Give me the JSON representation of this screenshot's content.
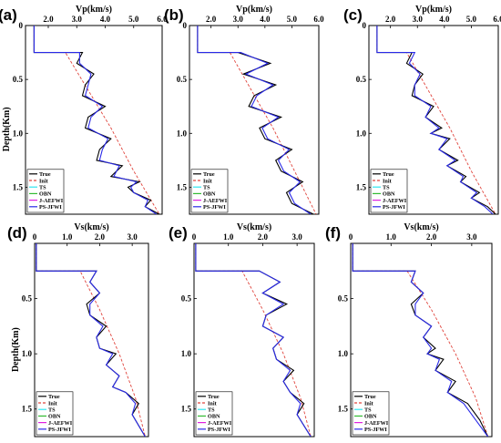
{
  "figure": {
    "background": "#ffffff"
  },
  "legend_entries": [
    {
      "name": "True",
      "color": "#000000",
      "dash": ""
    },
    {
      "name": "Init",
      "color": "#e0443c",
      "dash": "3,2"
    },
    {
      "name": "TS",
      "color": "#2ee6f0",
      "dash": ""
    },
    {
      "name": "OBN",
      "color": "#33bb33",
      "dash": ""
    },
    {
      "name": "J-AEFWI",
      "color": "#e020e0",
      "dash": ""
    },
    {
      "name": "PS-JFWI",
      "color": "#2a2ae8",
      "dash": ""
    }
  ],
  "chart_data": [
    {
      "panel_label": "(a)",
      "type": "line",
      "xlabel": "Vp(km/s)",
      "ylabel": "Depth(Km)",
      "xlim": [
        1.2,
        6.0
      ],
      "ylim": [
        0,
        1.75
      ],
      "xticks": [
        "2.0",
        "3.0",
        "4.0",
        "5.0",
        "6.0"
      ],
      "xtick_values": [
        2,
        3,
        4,
        5,
        6
      ],
      "yticks": [
        "0",
        "0.5",
        "1.0",
        "1.5"
      ],
      "ytick_values": [
        0,
        0.5,
        1.0,
        1.5
      ],
      "legend_position": "bottom-left",
      "series": [
        {
          "name": "True",
          "x": [
            1.5,
            1.5,
            3.2,
            3.0,
            3.6,
            3.3,
            3.2,
            4.0,
            3.4,
            3.3,
            4.2,
            3.8,
            3.7,
            4.6,
            4.4,
            4.2,
            5.2,
            4.8,
            5.0,
            5.6,
            5.4,
            5.9
          ],
          "y": [
            0,
            0.25,
            0.25,
            0.35,
            0.45,
            0.55,
            0.65,
            0.75,
            0.85,
            0.95,
            1.05,
            1.15,
            1.25,
            1.3,
            1.35,
            1.4,
            1.45,
            1.5,
            1.55,
            1.62,
            1.68,
            1.75
          ]
        },
        {
          "name": "Init",
          "x": [
            1.5,
            1.5,
            2.6,
            3.4,
            4.2,
            5.0,
            5.9
          ],
          "y": [
            0,
            0.25,
            0.25,
            0.6,
            0.95,
            1.35,
            1.75
          ]
        },
        {
          "name": "PS-JFWI",
          "x": [
            1.5,
            1.5,
            3.1,
            3.1,
            3.5,
            3.4,
            3.3,
            3.9,
            3.5,
            3.4,
            4.1,
            3.9,
            3.8,
            4.5,
            4.4,
            4.3,
            5.1,
            4.9,
            5.0,
            5.5,
            5.4,
            5.8
          ],
          "y": [
            0,
            0.25,
            0.25,
            0.35,
            0.45,
            0.55,
            0.65,
            0.75,
            0.85,
            0.95,
            1.05,
            1.15,
            1.25,
            1.3,
            1.35,
            1.4,
            1.45,
            1.5,
            1.55,
            1.62,
            1.68,
            1.75
          ]
        }
      ]
    },
    {
      "panel_label": "(b)",
      "type": "line",
      "xlabel": "Vp(km/s)",
      "ylabel": "",
      "xlim": [
        1.2,
        6.0
      ],
      "ylim": [
        0,
        1.75
      ],
      "xticks": [
        "2.0",
        "3.0",
        "4.0",
        "5.0",
        "6.0"
      ],
      "xtick_values": [
        2,
        3,
        4,
        5,
        6
      ],
      "yticks": [
        "0",
        "0.5",
        "1.0",
        "1.5"
      ],
      "ytick_values": [
        0,
        0.5,
        1.0,
        1.5
      ],
      "legend_position": "bottom-left",
      "series": [
        {
          "name": "True",
          "x": [
            1.5,
            1.5,
            3.0,
            4.2,
            3.2,
            4.4,
            3.6,
            3.4,
            4.6,
            3.8,
            4.0,
            5.0,
            4.4,
            4.6,
            5.4,
            4.8,
            5.0,
            5.8
          ],
          "y": [
            0,
            0.25,
            0.25,
            0.35,
            0.45,
            0.55,
            0.65,
            0.75,
            0.85,
            0.95,
            1.05,
            1.15,
            1.25,
            1.35,
            1.45,
            1.55,
            1.65,
            1.75
          ]
        },
        {
          "name": "Init",
          "x": [
            1.5,
            1.5,
            2.7,
            3.5,
            4.3,
            5.1,
            5.9
          ],
          "y": [
            0,
            0.25,
            0.25,
            0.6,
            0.95,
            1.35,
            1.75
          ]
        },
        {
          "name": "PS-JFWI",
          "x": [
            1.5,
            1.5,
            3.1,
            4.1,
            3.3,
            4.3,
            3.7,
            3.5,
            4.5,
            3.9,
            4.1,
            4.9,
            4.5,
            4.7,
            5.3,
            4.9,
            5.1,
            5.7
          ],
          "y": [
            0,
            0.25,
            0.25,
            0.35,
            0.45,
            0.55,
            0.65,
            0.75,
            0.85,
            0.95,
            1.05,
            1.15,
            1.25,
            1.35,
            1.45,
            1.55,
            1.65,
            1.75
          ]
        }
      ]
    },
    {
      "panel_label": "(c)",
      "type": "line",
      "xlabel": "Vp(km/s)",
      "ylabel": "",
      "xlim": [
        1.2,
        6.0
      ],
      "ylim": [
        0,
        1.75
      ],
      "xticks": [
        "2.0",
        "3.0",
        "4.0",
        "5.0",
        "6.0"
      ],
      "xtick_values": [
        2,
        3,
        4,
        5,
        6
      ],
      "yticks": [
        "0",
        "0.5",
        "1.0",
        "1.5"
      ],
      "ytick_values": [
        0,
        0.5,
        1.0,
        1.5
      ],
      "legend_position": "bottom-left",
      "series": [
        {
          "name": "True",
          "x": [
            1.5,
            1.5,
            2.8,
            2.6,
            3.2,
            2.9,
            2.8,
            3.6,
            3.3,
            3.9,
            3.5,
            4.2,
            3.8,
            4.5,
            4.1,
            4.8,
            4.6,
            5.3,
            5.0,
            5.6,
            5.9
          ],
          "y": [
            0,
            0.25,
            0.25,
            0.35,
            0.45,
            0.55,
            0.65,
            0.75,
            0.85,
            0.95,
            1.0,
            1.05,
            1.15,
            1.25,
            1.3,
            1.4,
            1.45,
            1.55,
            1.6,
            1.68,
            1.75
          ]
        },
        {
          "name": "Init",
          "x": [
            1.5,
            1.5,
            2.6,
            3.4,
            4.2,
            5.0,
            5.9
          ],
          "y": [
            0,
            0.25,
            0.25,
            0.6,
            0.95,
            1.35,
            1.75
          ]
        },
        {
          "name": "PS-JFWI",
          "x": [
            1.5,
            1.5,
            2.9,
            2.7,
            3.1,
            2.9,
            2.9,
            3.5,
            3.3,
            3.8,
            3.5,
            4.1,
            3.8,
            4.4,
            4.1,
            4.7,
            4.6,
            5.2,
            5.0,
            5.5,
            5.8
          ],
          "y": [
            0,
            0.25,
            0.25,
            0.35,
            0.45,
            0.55,
            0.65,
            0.75,
            0.85,
            0.95,
            1.0,
            1.05,
            1.15,
            1.25,
            1.3,
            1.4,
            1.45,
            1.55,
            1.6,
            1.68,
            1.75
          ]
        }
      ]
    },
    {
      "panel_label": "(d)",
      "type": "line",
      "xlabel": "Vs(km/s)",
      "ylabel": "Depth(Km)",
      "xlim": [
        0,
        3.5
      ],
      "ylim": [
        0,
        1.75
      ],
      "xticks": [
        "0",
        "1.0",
        "2.0",
        "3.0"
      ],
      "xtick_values": [
        0,
        1,
        2,
        3
      ],
      "yticks": [
        "0.5",
        "1.0",
        "1.5"
      ],
      "ytick_values": [
        0.5,
        1.0,
        1.5
      ],
      "legend_position": "bottom-left",
      "series": [
        {
          "name": "True",
          "x": [
            0.05,
            0.05,
            1.9,
            1.7,
            2.0,
            1.6,
            1.7,
            2.2,
            1.9,
            2.0,
            2.5,
            2.2,
            2.6,
            2.4,
            2.8,
            3.2,
            3.0,
            3.4
          ],
          "y": [
            0,
            0.25,
            0.25,
            0.35,
            0.45,
            0.55,
            0.65,
            0.75,
            0.85,
            0.95,
            1.0,
            1.1,
            1.2,
            1.3,
            1.35,
            1.45,
            1.55,
            1.75
          ]
        },
        {
          "name": "Init",
          "x": [
            0.05,
            0.05,
            1.4,
            2.0,
            2.6,
            3.1,
            3.4
          ],
          "y": [
            0,
            0.25,
            0.25,
            0.6,
            1.0,
            1.4,
            1.75
          ]
        },
        {
          "name": "PS-JFWI",
          "x": [
            0.05,
            0.05,
            1.9,
            1.7,
            2.0,
            1.7,
            1.7,
            2.1,
            1.9,
            2.0,
            2.4,
            2.2,
            2.6,
            2.4,
            2.8,
            3.1,
            3.0,
            3.4
          ],
          "y": [
            0,
            0.25,
            0.25,
            0.35,
            0.45,
            0.55,
            0.65,
            0.75,
            0.85,
            0.95,
            1.0,
            1.1,
            1.2,
            1.3,
            1.35,
            1.45,
            1.55,
            1.75
          ]
        }
      ]
    },
    {
      "panel_label": "(e)",
      "type": "line",
      "xlabel": "Vs(km/s)",
      "ylabel": "",
      "xlim": [
        0,
        3.5
      ],
      "ylim": [
        0,
        1.75
      ],
      "xticks": [
        "0",
        "1.0",
        "2.0",
        "3.0"
      ],
      "xtick_values": [
        0,
        1,
        2,
        3
      ],
      "yticks": [
        "0.5",
        "1.0",
        "1.5"
      ],
      "ytick_values": [
        0.5,
        1.0,
        1.5
      ],
      "legend_position": "bottom-left",
      "series": [
        {
          "name": "True",
          "x": [
            0.05,
            0.05,
            1.9,
            2.5,
            2.0,
            2.7,
            2.1,
            2.0,
            2.6,
            2.3,
            2.4,
            2.9,
            2.6,
            2.8,
            3.2,
            3.0,
            3.4
          ],
          "y": [
            0,
            0.25,
            0.25,
            0.35,
            0.45,
            0.55,
            0.65,
            0.75,
            0.85,
            0.95,
            1.05,
            1.15,
            1.25,
            1.35,
            1.45,
            1.55,
            1.75
          ]
        },
        {
          "name": "Init",
          "x": [
            0.05,
            0.05,
            1.4,
            2.0,
            2.6,
            3.1,
            3.4
          ],
          "y": [
            0,
            0.25,
            0.25,
            0.6,
            1.0,
            1.4,
            1.75
          ]
        },
        {
          "name": "PS-JFWI",
          "x": [
            0.05,
            0.05,
            1.9,
            2.5,
            2.0,
            2.6,
            2.1,
            2.0,
            2.6,
            2.3,
            2.4,
            2.8,
            2.6,
            2.8,
            3.1,
            3.0,
            3.4
          ],
          "y": [
            0,
            0.25,
            0.25,
            0.35,
            0.45,
            0.55,
            0.65,
            0.75,
            0.85,
            0.95,
            1.05,
            1.15,
            1.25,
            1.35,
            1.45,
            1.55,
            1.75
          ]
        }
      ]
    },
    {
      "panel_label": "(f)",
      "type": "line",
      "xlabel": "Vs(km/s)",
      "ylabel": "",
      "xlim": [
        0,
        3.5
      ],
      "ylim": [
        0,
        1.75
      ],
      "xticks": [
        "0",
        "1.0",
        "2.0",
        "3.0"
      ],
      "xtick_values": [
        0,
        1,
        2,
        3
      ],
      "yticks": [
        "0.5",
        "1.0",
        "1.5"
      ],
      "ytick_values": [
        0.5,
        1.0,
        1.5
      ],
      "legend_position": "bottom-left",
      "series": [
        {
          "name": "True",
          "x": [
            0.05,
            0.05,
            1.6,
            1.5,
            1.8,
            1.5,
            1.6,
            2.0,
            1.8,
            2.1,
            1.9,
            2.3,
            2.1,
            2.6,
            2.4,
            2.9,
            3.2,
            3.4
          ],
          "y": [
            0,
            0.25,
            0.25,
            0.35,
            0.45,
            0.55,
            0.65,
            0.75,
            0.85,
            0.95,
            1.0,
            1.05,
            1.15,
            1.25,
            1.35,
            1.45,
            1.6,
            1.75
          ]
        },
        {
          "name": "Init",
          "x": [
            0.05,
            0.05,
            1.4,
            2.0,
            2.6,
            3.1,
            3.4
          ],
          "y": [
            0,
            0.25,
            0.25,
            0.6,
            1.0,
            1.4,
            1.75
          ]
        },
        {
          "name": "PS-JFWI",
          "x": [
            0.05,
            0.05,
            1.6,
            1.5,
            1.8,
            1.6,
            1.6,
            2.0,
            1.8,
            2.0,
            1.9,
            2.2,
            2.1,
            2.5,
            2.4,
            2.8,
            3.1,
            3.4
          ],
          "y": [
            0,
            0.25,
            0.25,
            0.35,
            0.45,
            0.55,
            0.65,
            0.75,
            0.85,
            0.95,
            1.0,
            1.05,
            1.15,
            1.25,
            1.35,
            1.45,
            1.6,
            1.75
          ]
        }
      ]
    }
  ]
}
